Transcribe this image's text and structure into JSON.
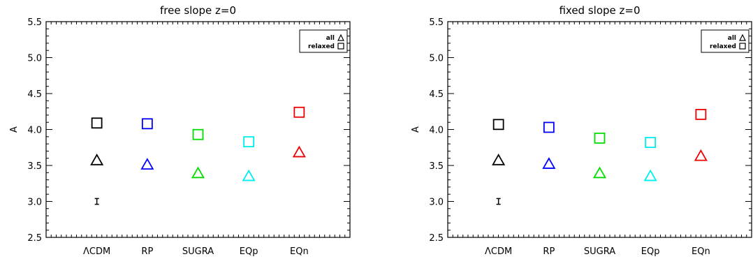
{
  "chart_data": [
    {
      "type": "scatter",
      "title": "free slope z=0",
      "xlabel": "",
      "ylabel": "A",
      "categories": [
        "ΛCDM",
        "RP",
        "SUGRA",
        "EQp",
        "EQn"
      ],
      "ylim": [
        2.5,
        5.5
      ],
      "yticks": [
        "2.5",
        "3.0",
        "3.5",
        "4.0",
        "4.5",
        "5.0",
        "5.5"
      ],
      "grid": false,
      "legend_position": "top-right",
      "legend": [
        {
          "label": "all",
          "marker": "triangle"
        },
        {
          "label": "relaxed",
          "marker": "square"
        }
      ],
      "series": [
        {
          "name": "relaxed",
          "marker": "square",
          "values": [
            4.09,
            4.08,
            3.93,
            3.83,
            4.24
          ]
        },
        {
          "name": "all",
          "marker": "triangle",
          "values": [
            3.57,
            3.51,
            3.39,
            3.35,
            3.68
          ]
        }
      ],
      "point_colors": [
        "#000000",
        "#0000ff",
        "#00dd00",
        "#00eeee",
        "#ee0000"
      ],
      "errorbar": {
        "category": "ΛCDM",
        "center": 3.0,
        "halfwidth": 0.04
      }
    },
    {
      "type": "scatter",
      "title": "fixed slope z=0",
      "xlabel": "",
      "ylabel": "A",
      "categories": [
        "ΛCDM",
        "RP",
        "SUGRA",
        "EQp",
        "EQn"
      ],
      "ylim": [
        2.5,
        5.5
      ],
      "yticks": [
        "2.5",
        "3.0",
        "3.5",
        "4.0",
        "4.5",
        "5.0",
        "5.5"
      ],
      "grid": false,
      "legend_position": "top-right",
      "legend": [
        {
          "label": "all",
          "marker": "triangle"
        },
        {
          "label": "relaxed",
          "marker": "square"
        }
      ],
      "series": [
        {
          "name": "relaxed",
          "marker": "square",
          "values": [
            4.07,
            4.03,
            3.88,
            3.82,
            4.21
          ]
        },
        {
          "name": "all",
          "marker": "triangle",
          "values": [
            3.57,
            3.52,
            3.39,
            3.35,
            3.63
          ]
        }
      ],
      "point_colors": [
        "#000000",
        "#0000ff",
        "#00dd00",
        "#00eeee",
        "#ee0000"
      ],
      "errorbar": {
        "category": "ΛCDM",
        "center": 3.0,
        "halfwidth": 0.04
      }
    }
  ]
}
